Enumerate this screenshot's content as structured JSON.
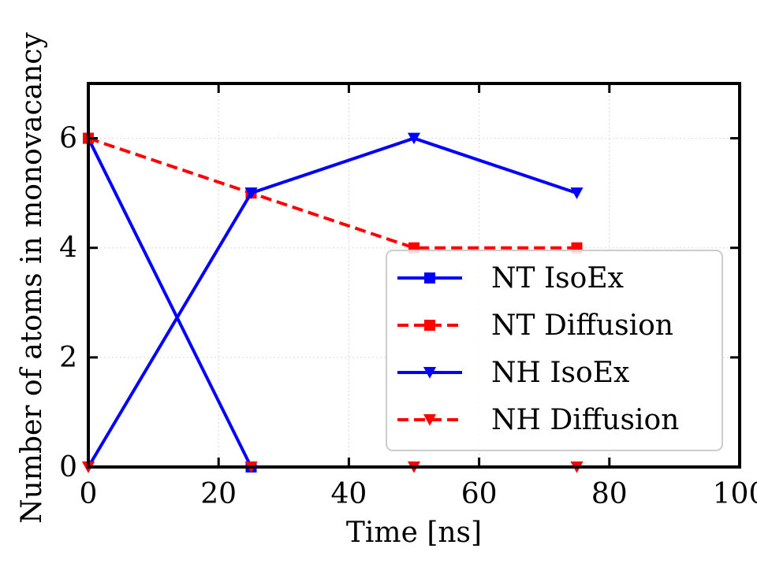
{
  "chart_data": {
    "type": "line",
    "xlabel": "Time [ns]",
    "ylabel": "Number of atoms in monovacancy",
    "xlim": [
      0,
      100
    ],
    "ylim": [
      0,
      7
    ],
    "xticks": [
      "0",
      "20",
      "40",
      "60",
      "80",
      "100"
    ],
    "yticks": [
      "0",
      "2",
      "4",
      "6"
    ],
    "grid": true,
    "legend_position": "lower-right",
    "series": [
      {
        "name": "NT IsoEx",
        "x": [
          0,
          25
        ],
        "y": [
          6,
          0
        ],
        "color": "#0000ff",
        "linestyle": "solid",
        "marker": "square"
      },
      {
        "name": "NT Diffusion",
        "x": [
          0,
          25,
          50,
          75
        ],
        "y": [
          6,
          5,
          4,
          4
        ],
        "color": "#ff0000",
        "linestyle": "dashed",
        "marker": "square"
      },
      {
        "name": "NH IsoEx",
        "x": [
          0,
          25,
          50,
          75
        ],
        "y": [
          0,
          5,
          6,
          5
        ],
        "color": "#0000ff",
        "linestyle": "solid",
        "marker": "triangle-down"
      },
      {
        "name": "NH Diffusion",
        "x": [
          0,
          25,
          50,
          75
        ],
        "y": [
          0,
          0,
          0,
          0
        ],
        "color": "#ff0000",
        "linestyle": "dashed",
        "marker": "triangle-down"
      }
    ]
  }
}
